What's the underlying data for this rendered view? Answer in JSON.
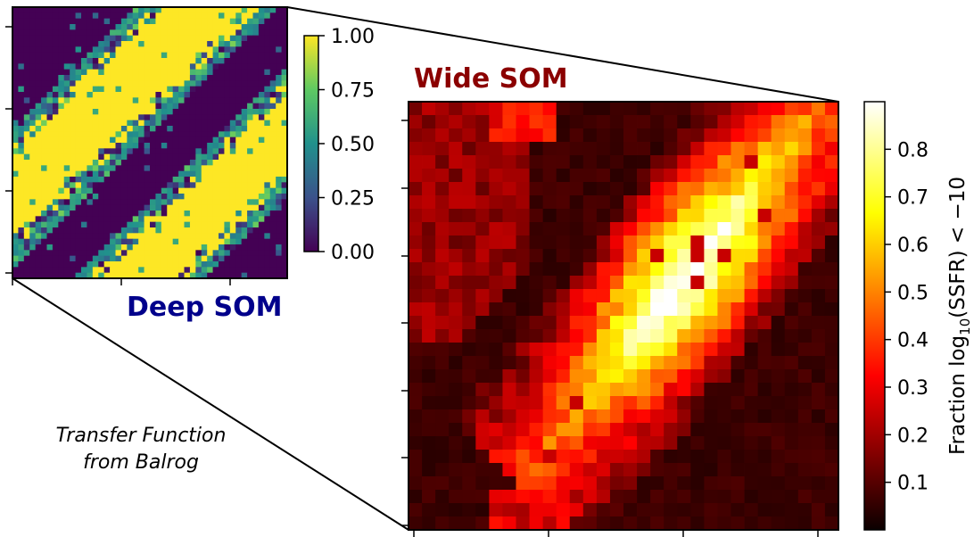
{
  "chart_data": [
    {
      "type": "heatmap",
      "title": "Deep SOM",
      "grid": [
        48,
        48
      ],
      "colormap": "viridis",
      "colorbar": {
        "min": 0.0,
        "max": 1.0,
        "ticks": [
          "0.00",
          "0.25",
          "0.50",
          "0.75",
          "1.00"
        ]
      },
      "pattern": "two diagonal bands of high values (1.0) running from lower-left to upper-right on a background of 0.0, with scattered noisy cells",
      "xtick_count": 3,
      "ytick_count": 4
    },
    {
      "type": "heatmap",
      "title": "Wide SOM",
      "grid": [
        32,
        32
      ],
      "colormap": "hot",
      "colorbar": {
        "min": 0.0,
        "max": 0.9,
        "ticks": [
          "0.1",
          "0.2",
          "0.3",
          "0.4",
          "0.5",
          "0.6",
          "0.7",
          "0.8"
        ],
        "label_parts": {
          "prefix": "Fraction log",
          "sub": "10",
          "suffix": "(SSFR) < −10"
        }
      },
      "pattern": "bright diagonal band (fraction up to ~0.88) from lower-center to upper-right; dim red top-left region; near-black elsewhere",
      "xtick_count": 4,
      "ytick_count": 8
    }
  ],
  "annotation": {
    "line1": "Transfer Function",
    "line2": "from Balrog"
  }
}
